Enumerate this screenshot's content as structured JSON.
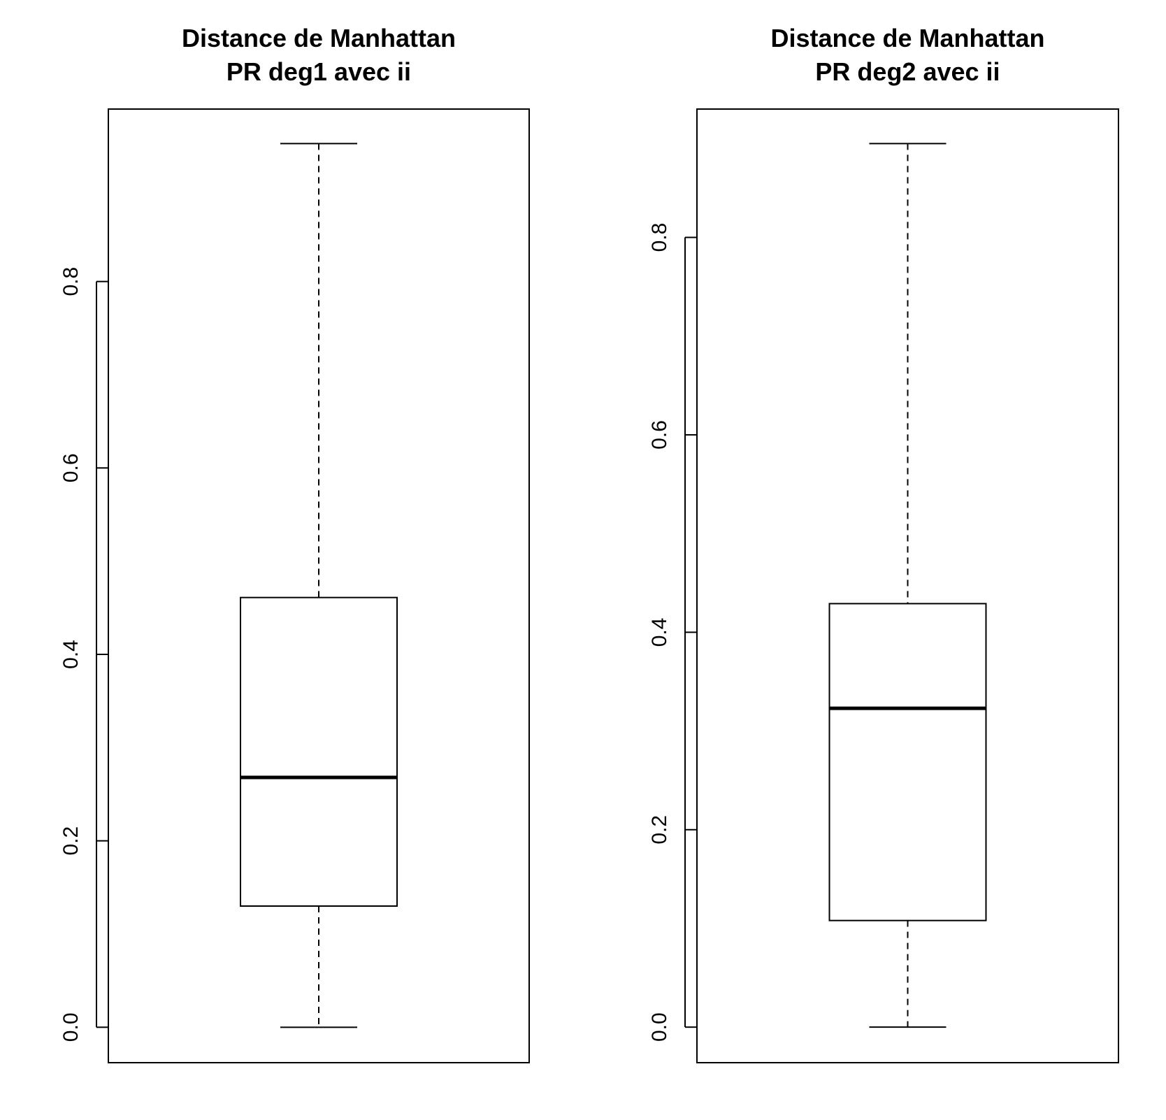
{
  "chart_data": [
    {
      "type": "box",
      "title": [
        "Distance de Manhattan",
        "PR deg1 avec ii"
      ],
      "xlabel": "",
      "ylabel": "",
      "ylim": [
        -0.038,
        0.985
      ],
      "yticks": [
        0.0,
        0.2,
        0.4,
        0.6,
        0.8
      ],
      "ytick_labels": [
        "0.0",
        "0.2",
        "0.4",
        "0.6",
        "0.8"
      ],
      "grid": false,
      "stats": {
        "min": 0.0,
        "q1": 0.13,
        "median": 0.268,
        "q3": 0.461,
        "max": 0.948
      }
    },
    {
      "type": "box",
      "title": [
        "Distance de Manhattan",
        "PR deg2 avec ii"
      ],
      "xlabel": "",
      "ylabel": "",
      "ylim": [
        -0.036,
        0.93
      ],
      "yticks": [
        0.0,
        0.2,
        0.4,
        0.6,
        0.8
      ],
      "ytick_labels": [
        "0.0",
        "0.2",
        "0.4",
        "0.6",
        "0.8"
      ],
      "grid": false,
      "stats": {
        "min": 0.0,
        "q1": 0.108,
        "median": 0.323,
        "q3": 0.429,
        "max": 0.895
      }
    }
  ]
}
